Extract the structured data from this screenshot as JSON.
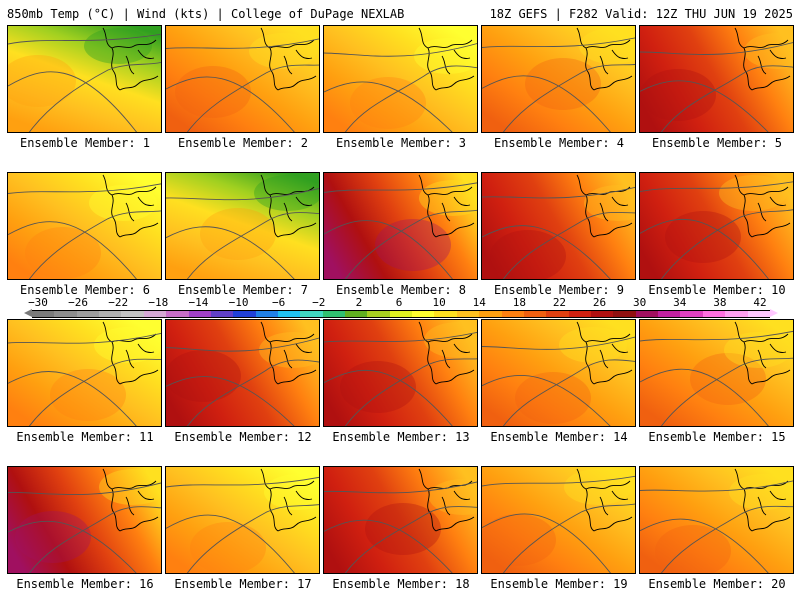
{
  "header": {
    "left": "850mb Temp (°C) | Wind (kts) | College of DuPage NEXLAB",
    "right": "18Z GEFS | F282 Valid: 12Z THU JUN 19 2025"
  },
  "colorbar": {
    "ticks": [
      "−30",
      "−26",
      "−22",
      "−18",
      "−14",
      "−10",
      "−6",
      "−2",
      "2",
      "6",
      "10",
      "14",
      "18",
      "22",
      "26",
      "30",
      "34",
      "38",
      "42"
    ],
    "colors": [
      "#7a7a7a",
      "#8c8c8c",
      "#9e9e9e",
      "#b0b0b0",
      "#c2c2c2",
      "#d4a8d4",
      "#c86ec8",
      "#a040c8",
      "#6040c8",
      "#2040d8",
      "#2080e8",
      "#20c0f0",
      "#40d8c0",
      "#30c070",
      "#60b020",
      "#a8d020",
      "#e0f020",
      "#ffff30",
      "#ffe020",
      "#ffc020",
      "#ffa010",
      "#ff8010",
      "#f06010",
      "#e04010",
      "#d02010",
      "#b01010",
      "#901010",
      "#a01060",
      "#c020a0",
      "#e040c0",
      "#ff70e0",
      "#ffa0f0",
      "#ffc8ff"
    ]
  },
  "panels": [
    {
      "label": "Ensemble Member: 1",
      "palette": "cool-north"
    },
    {
      "label": "Ensemble Member: 2",
      "palette": "warm"
    },
    {
      "label": "Ensemble Member: 3",
      "palette": "mild"
    },
    {
      "label": "Ensemble Member: 4",
      "palette": "warm"
    },
    {
      "label": "Ensemble Member: 5",
      "palette": "hot"
    },
    {
      "label": "Ensemble Member: 6",
      "palette": "mild"
    },
    {
      "label": "Ensemble Member: 7",
      "palette": "cool-north"
    },
    {
      "label": "Ensemble Member: 8",
      "palette": "hot-west"
    },
    {
      "label": "Ensemble Member: 9",
      "palette": "hot"
    },
    {
      "label": "Ensemble Member: 10",
      "palette": "hot"
    },
    {
      "label": "Ensemble Member: 11",
      "palette": "mild"
    },
    {
      "label": "Ensemble Member: 12",
      "palette": "hot"
    },
    {
      "label": "Ensemble Member: 13",
      "palette": "hot"
    },
    {
      "label": "Ensemble Member: 14",
      "palette": "warm"
    },
    {
      "label": "Ensemble Member: 15",
      "palette": "warm"
    },
    {
      "label": "Ensemble Member: 16",
      "palette": "hot-west"
    },
    {
      "label": "Ensemble Member: 17",
      "palette": "mild"
    },
    {
      "label": "Ensemble Member: 18",
      "palette": "hot"
    },
    {
      "label": "Ensemble Member: 19",
      "palette": "warm"
    },
    {
      "label": "Ensemble Member: 20",
      "palette": "warm"
    }
  ],
  "palettes": {
    "cool-north": [
      "#30a020",
      "#a0d020",
      "#ffe020",
      "#ffc020",
      "#ffa010"
    ],
    "warm": [
      "#ffe020",
      "#ffc020",
      "#ffa010",
      "#ff8010",
      "#f06010"
    ],
    "mild": [
      "#ffff30",
      "#ffe020",
      "#ffc020",
      "#ffa010",
      "#ff8010"
    ],
    "hot": [
      "#ffc020",
      "#ff8010",
      "#e04010",
      "#d02010",
      "#b01010"
    ],
    "hot-west": [
      "#ffe020",
      "#ff8010",
      "#e04010",
      "#b01010",
      "#a01060"
    ]
  }
}
